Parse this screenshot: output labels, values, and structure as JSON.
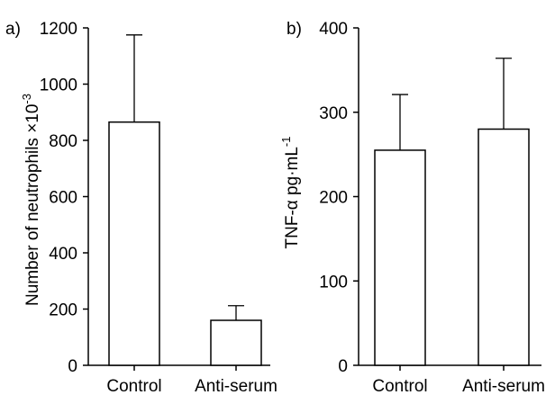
{
  "chart_data": [
    {
      "type": "bar",
      "panel_label": "a)",
      "categories": [
        "Control",
        "Anti-serum"
      ],
      "values": [
        865,
        160
      ],
      "error_upper": [
        1175,
        212
      ],
      "ylabel": "Number of neutrophils ×10-3",
      "ylabel_main": "Number of neutrophils ×10",
      "ylabel_sup": "-3",
      "ylim": [
        0,
        1200
      ],
      "yticks": [
        "0",
        "200",
        "400",
        "600",
        "800",
        "1000",
        "1200"
      ],
      "ytick_values": [
        0,
        200,
        400,
        600,
        800,
        1000,
        1200
      ],
      "grid": false
    },
    {
      "type": "bar",
      "panel_label": "b)",
      "categories": [
        "Control",
        "Anti-serum"
      ],
      "values": [
        255,
        280
      ],
      "error_upper": [
        321,
        364
      ],
      "ylabel": "TNF-α pg·mL-1",
      "ylabel_main": "TNF-α  pg·mL",
      "ylabel_sup": "-1",
      "ylim": [
        0,
        400
      ],
      "yticks": [
        "0",
        "100",
        "200",
        "300",
        "400"
      ],
      "ytick_values": [
        0,
        100,
        200,
        300,
        400
      ],
      "grid": false
    }
  ]
}
